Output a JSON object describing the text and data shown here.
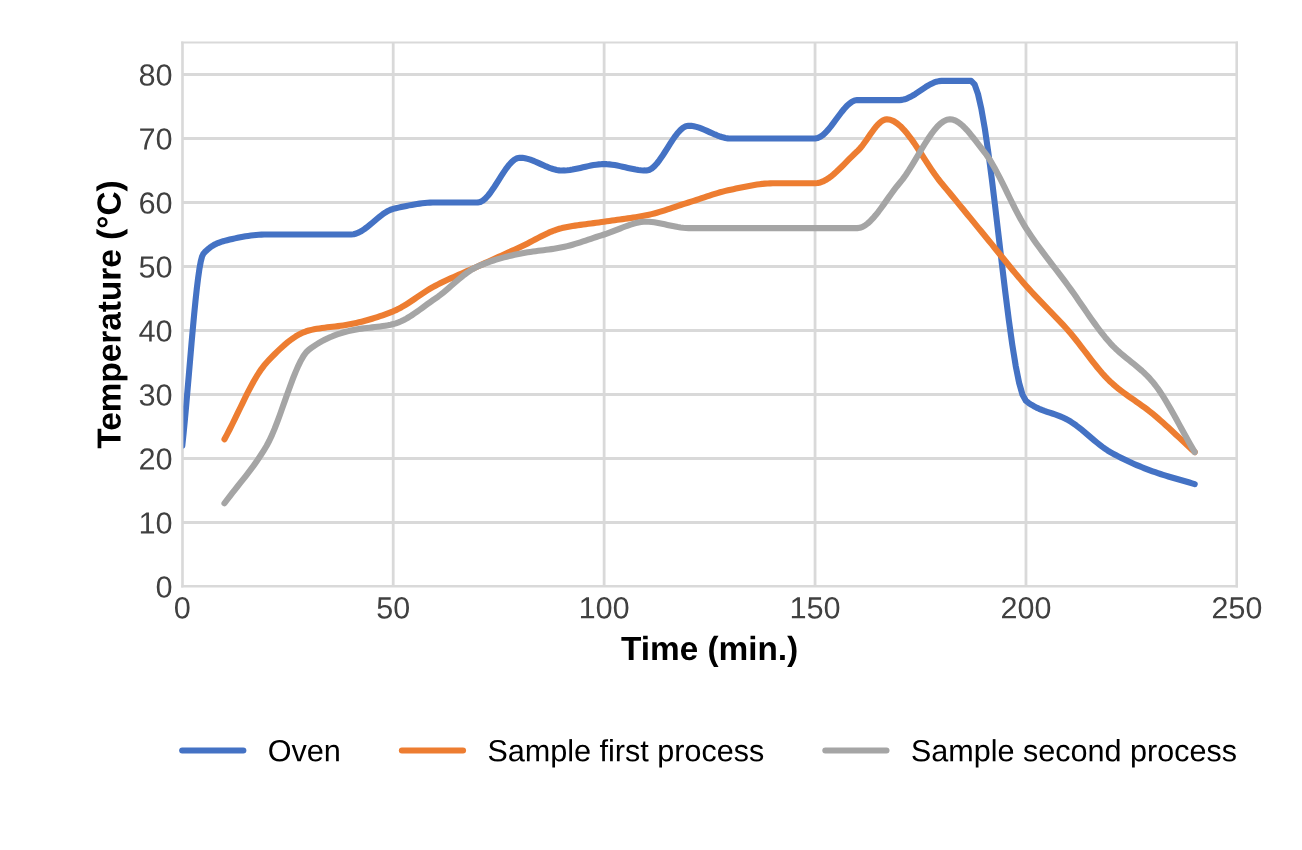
{
  "chart_data": {
    "type": "line",
    "xlabel": "Time (min.)",
    "ylabel": "Temperature (°C)",
    "xlim": [
      0,
      250
    ],
    "xticks": [
      0,
      50,
      100,
      150,
      200,
      250
    ],
    "ylim": [
      0,
      85
    ],
    "yticks": [
      0,
      10,
      20,
      30,
      40,
      50,
      60,
      70,
      80
    ],
    "grid": true,
    "legend": "bottom",
    "marker": "none",
    "line_style": "solid",
    "series": [
      {
        "name": "Oven",
        "color": "#4472c4",
        "x": [
          0,
          5,
          10,
          20,
          30,
          40,
          50,
          60,
          70,
          80,
          90,
          100,
          110,
          120,
          130,
          140,
          150,
          160,
          170,
          180,
          187,
          200,
          210,
          220,
          230,
          240
        ],
        "values": [
          22,
          52,
          54,
          55,
          55,
          55,
          59,
          60,
          60,
          67,
          65,
          66,
          65,
          72,
          70,
          70,
          70,
          76,
          76,
          79,
          79,
          29,
          26,
          21,
          18,
          16
        ]
      },
      {
        "name": "Sample first process",
        "color": "#ed7d31",
        "x": [
          10,
          20,
          30,
          40,
          50,
          60,
          70,
          80,
          90,
          100,
          110,
          120,
          130,
          140,
          150,
          160,
          167,
          180,
          190,
          200,
          210,
          220,
          230,
          240
        ],
        "values": [
          23,
          35,
          40,
          41,
          43,
          47,
          50,
          53,
          56,
          57,
          58,
          60,
          62,
          63,
          63,
          68,
          73,
          63,
          55,
          47,
          40,
          32,
          27,
          21
        ]
      },
      {
        "name": "Sample second process",
        "color": "#a5a5a5",
        "x": [
          10,
          20,
          30,
          40,
          50,
          60,
          70,
          80,
          90,
          100,
          110,
          120,
          130,
          140,
          150,
          160,
          170,
          182,
          190,
          200,
          210,
          220,
          230,
          240
        ],
        "values": [
          13,
          22,
          37,
          40,
          41,
          45,
          50,
          52,
          53,
          55,
          57,
          56,
          56,
          56,
          56,
          56,
          63,
          73,
          68,
          56,
          47,
          38,
          32,
          21
        ]
      }
    ]
  }
}
